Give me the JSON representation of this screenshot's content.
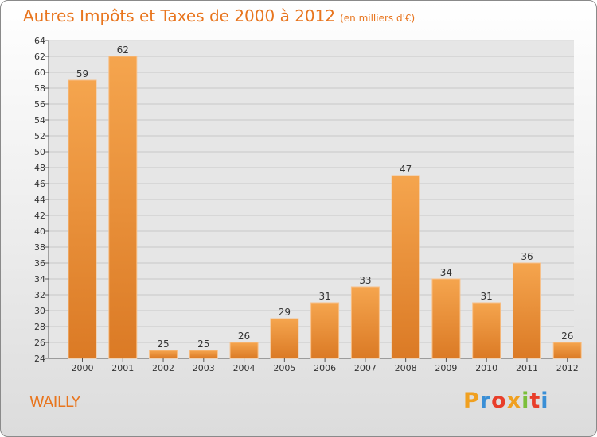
{
  "header": {
    "title": "Autres Impôts et Taxes de 2000 à 2012",
    "subtitle": "(en milliers d'€)"
  },
  "footer": {
    "location": "WAILLY",
    "logo_text": "Proxiti"
  },
  "colors": {
    "accent": "#e8751e",
    "bar_light": "#f5a54e",
    "bar_dark": "#db7a25",
    "logo_letters": [
      "#f0a020",
      "#3a8fd6",
      "#e83e2a",
      "#f0a020",
      "#7bbf3a",
      "#e83e2a",
      "#3a8fd6"
    ]
  },
  "chart_data": {
    "type": "bar",
    "categories": [
      "2000",
      "2001",
      "2002",
      "2003",
      "2004",
      "2005",
      "2006",
      "2007",
      "2008",
      "2009",
      "2010",
      "2011",
      "2012"
    ],
    "values": [
      59,
      62,
      25,
      25,
      26,
      29,
      31,
      33,
      47,
      34,
      31,
      36,
      26
    ],
    "ylim": [
      24,
      64
    ],
    "ystep": 2,
    "grid": true,
    "data_labels": true
  }
}
